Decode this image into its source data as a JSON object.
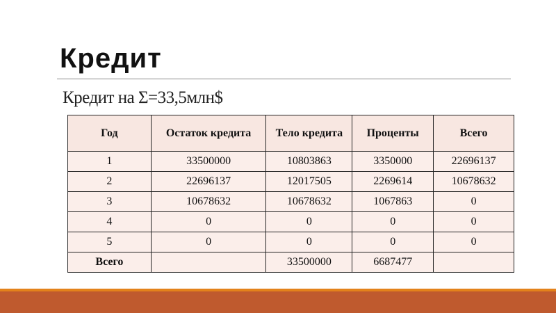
{
  "slide": {
    "title": "Кредит",
    "subtitle": "Кредит на Σ=33,5млн$",
    "accent_color": "#bf5a2e",
    "accent_line_color": "#e3821b"
  },
  "table": {
    "headers": [
      "Год",
      "Остаток кредита",
      "Тело кредита",
      "Проценты",
      "Всего"
    ],
    "rows": [
      [
        "1",
        "33500000",
        "10803863",
        "3350000",
        "22696137"
      ],
      [
        "2",
        "22696137",
        "12017505",
        "2269614",
        "10678632"
      ],
      [
        "3",
        "10678632",
        "10678632",
        "1067863",
        "0"
      ],
      [
        "4",
        "0",
        "0",
        "0",
        "0"
      ],
      [
        "5",
        "0",
        "0",
        "0",
        "0"
      ],
      [
        "Всего",
        "",
        "33500000",
        "6687477",
        ""
      ]
    ]
  }
}
